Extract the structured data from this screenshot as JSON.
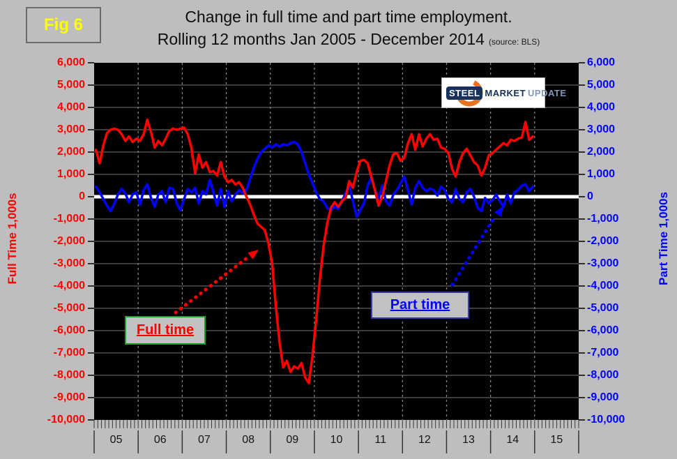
{
  "figure_label": "Fig 6",
  "title": {
    "line1": "Change in full time and part time employment.",
    "line2": "Rolling 12 months Jan 2005 - December 2014",
    "source": "(source: BLS)"
  },
  "logo": {
    "steel": "STEEL",
    "market": "MARKET",
    "update": "UPDATE"
  },
  "axes": {
    "left_title": "Full Time 1,000s",
    "left_color": "#ff0000",
    "right_title": "Part Time 1,000s",
    "right_color": "#0000ff"
  },
  "annotations": {
    "full_time": "Full time",
    "part_time": "Part time"
  },
  "chart_data": {
    "type": "line",
    "title": "Change in full time and part time employment. Rolling 12 months Jan 2005 - December 2014",
    "x_unit": "month",
    "x_start": "Jan 2005",
    "x_end": "Dec 2014",
    "x_tick_labels": [
      "05",
      "06",
      "07",
      "08",
      "09",
      "10",
      "11",
      "12",
      "13",
      "14",
      "15"
    ],
    "y_tick_values": [
      6000,
      5000,
      4000,
      3000,
      2000,
      1000,
      0,
      -1000,
      -2000,
      -3000,
      -4000,
      -5000,
      -6000,
      -7000,
      -8000,
      -9000,
      -10000
    ],
    "ylim": [
      -10000,
      6000
    ],
    "grid": {
      "horizontal": "solid-gray",
      "vertical": "dashed-gray",
      "zero_line": "thick-white"
    },
    "plot_bg": "#000000",
    "zero_line_color": "#ffffff",
    "legend_position": "annotated-callouts",
    "series": [
      {
        "name": "Full time",
        "color": "#ff0000",
        "values": [
          2100,
          1500,
          2300,
          2850,
          3000,
          3050,
          3000,
          2800,
          2500,
          2700,
          2450,
          2600,
          2500,
          2800,
          3450,
          2900,
          2200,
          2500,
          2300,
          2600,
          2950,
          3050,
          3000,
          3050,
          3100,
          2800,
          2200,
          1050,
          1900,
          1300,
          1550,
          1100,
          1150,
          950,
          1550,
          900,
          650,
          750,
          550,
          650,
          400,
          0,
          -350,
          -800,
          -1200,
          -1350,
          -1500,
          -2100,
          -3000,
          -4900,
          -6500,
          -7650,
          -7350,
          -7850,
          -7600,
          -7700,
          -7450,
          -8100,
          -8350,
          -7100,
          -5500,
          -3700,
          -2200,
          -1200,
          -500,
          -250,
          -450,
          -200,
          -50,
          700,
          400,
          1100,
          1600,
          1650,
          1500,
          900,
          300,
          -400,
          0,
          700,
          1400,
          1900,
          1950,
          1600,
          1750,
          2400,
          2800,
          2100,
          2800,
          2250,
          2600,
          2800,
          2550,
          2600,
          2200,
          2150,
          1950,
          1250,
          900,
          1550,
          1950,
          2150,
          1850,
          1550,
          1400,
          950,
          1300,
          1850,
          1950,
          2100,
          2250,
          2400,
          2300,
          2550,
          2500,
          2600,
          2650,
          3350,
          2550,
          2700
        ]
      },
      {
        "name": "Part time",
        "color": "#0000ff",
        "values": [
          450,
          200,
          -100,
          -400,
          -650,
          -300,
          100,
          350,
          150,
          -250,
          100,
          200,
          -350,
          300,
          550,
          -50,
          -450,
          100,
          250,
          -250,
          400,
          350,
          -300,
          -600,
          -100,
          350,
          200,
          400,
          -300,
          250,
          100,
          750,
          200,
          -400,
          350,
          -450,
          250,
          -200,
          100,
          300,
          150,
          300,
          800,
          1300,
          1700,
          2000,
          2150,
          2300,
          2200,
          2350,
          2250,
          2350,
          2300,
          2400,
          2450,
          2350,
          2000,
          1500,
          1000,
          600,
          200,
          -100,
          -200,
          -500,
          -600,
          -450,
          -550,
          -200,
          150,
          500,
          -200,
          -900,
          -600,
          -300,
          500,
          850,
          300,
          -100,
          500,
          -200,
          -400,
          100,
          300,
          600,
          900,
          300,
          -350,
          400,
          700,
          400,
          250,
          370,
          300,
          50,
          450,
          300,
          -100,
          -250,
          350,
          -100,
          -250,
          200,
          350,
          0,
          -500,
          -650,
          -50,
          -300,
          -150,
          100,
          -200,
          -450,
          100,
          -300,
          200,
          300,
          500,
          550,
          250,
          450
        ]
      }
    ]
  }
}
